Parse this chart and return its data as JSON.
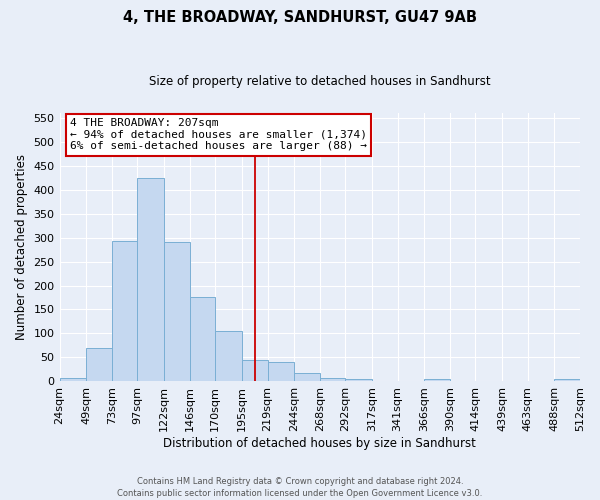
{
  "title": "4, THE BROADWAY, SANDHURST, GU47 9AB",
  "subtitle": "Size of property relative to detached houses in Sandhurst",
  "xlabel": "Distribution of detached houses by size in Sandhurst",
  "ylabel": "Number of detached properties",
  "bar_color": "#c5d8f0",
  "bar_edge_color": "#7aafd4",
  "bg_color": "#e8eef8",
  "grid_color": "#ffffff",
  "vline_x": 207,
  "vline_color": "#cc0000",
  "bin_edges": [
    24,
    49,
    73,
    97,
    122,
    146,
    170,
    195,
    219,
    244,
    268,
    292,
    317,
    341,
    366,
    390,
    414,
    439,
    463,
    488,
    512
  ],
  "bar_heights": [
    8,
    70,
    292,
    425,
    290,
    175,
    106,
    45,
    40,
    17,
    8,
    5,
    0,
    0,
    5,
    0,
    0,
    0,
    0,
    5
  ],
  "tick_labels": [
    "24sqm",
    "49sqm",
    "73sqm",
    "97sqm",
    "122sqm",
    "146sqm",
    "170sqm",
    "195sqm",
    "219sqm",
    "244sqm",
    "268sqm",
    "292sqm",
    "317sqm",
    "341sqm",
    "366sqm",
    "390sqm",
    "414sqm",
    "439sqm",
    "463sqm",
    "488sqm",
    "512sqm"
  ],
  "ylim": [
    0,
    560
  ],
  "yticks": [
    0,
    50,
    100,
    150,
    200,
    250,
    300,
    350,
    400,
    450,
    500,
    550
  ],
  "annotation_title": "4 THE BROADWAY: 207sqm",
  "annotation_line1": "← 94% of detached houses are smaller (1,374)",
  "annotation_line2": "6% of semi-detached houses are larger (88) →",
  "annotation_box_color": "#ffffff",
  "annotation_box_edge": "#cc0000",
  "footer1": "Contains HM Land Registry data © Crown copyright and database right 2024.",
  "footer2": "Contains public sector information licensed under the Open Government Licence v3.0."
}
